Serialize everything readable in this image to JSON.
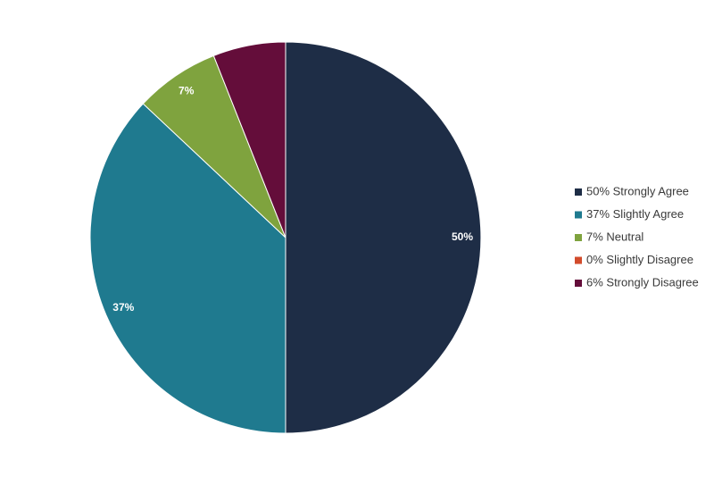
{
  "chart_data": {
    "type": "pie",
    "categories": [
      "50% Strongly Agree",
      "37% Slightly Agree",
      "7% Neutral",
      "0% Slightly Disagree",
      "6% Strongly Disagree"
    ],
    "values": [
      50,
      37,
      7,
      0,
      6
    ],
    "value_labels": [
      "50%",
      "37%",
      "7%",
      null,
      null
    ],
    "colors": [
      "#1e2d46",
      "#1f7a8f",
      "#7fa33e",
      "#d24b2b",
      "#640d3a"
    ],
    "legend": "right"
  }
}
